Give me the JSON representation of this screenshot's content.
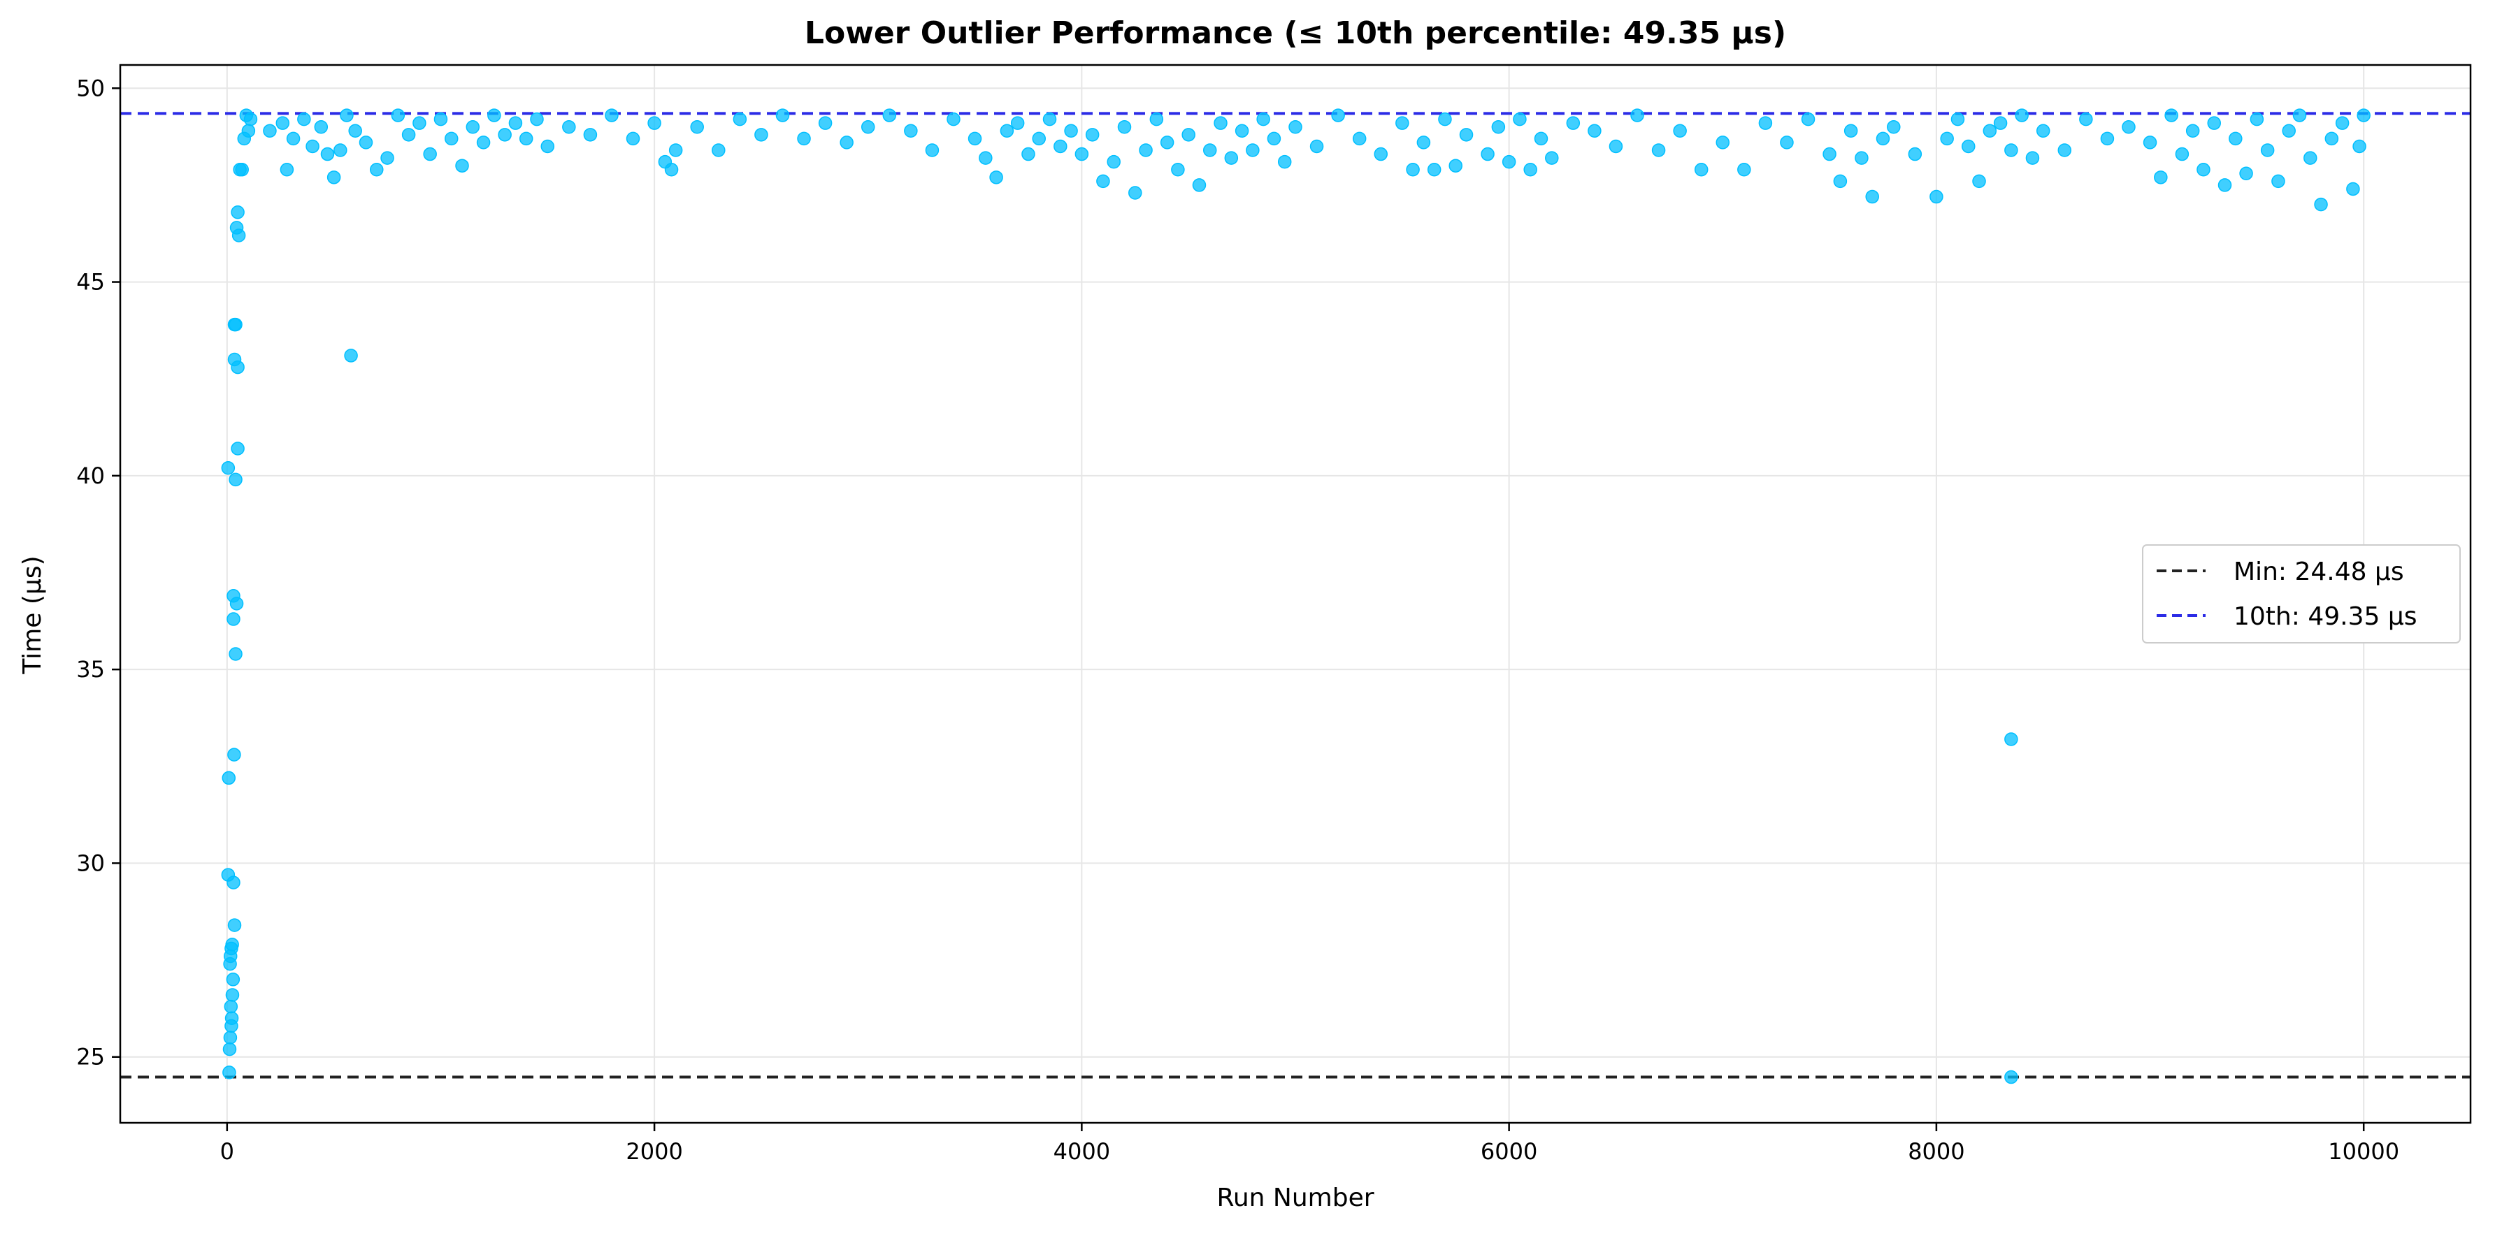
{
  "chart_data": {
    "type": "scatter",
    "title": "Lower Outlier Performance (≤ 10th percentile: 49.35 μs)",
    "xlabel": "Run Number",
    "ylabel": "Time (μs)",
    "xlim": [
      -500,
      10500
    ],
    "ylim": [
      23.3,
      50.6
    ],
    "xticks": [
      0,
      2000,
      4000,
      6000,
      8000,
      10000
    ],
    "yticks": [
      25,
      30,
      35,
      40,
      45,
      50
    ],
    "grid": true,
    "legend_position": "center-right",
    "colors": {
      "points": "#00bfff",
      "min_line": "#222222",
      "p10_line": "#2b2be6",
      "grid": "#e6e6e6"
    },
    "reference_lines": [
      {
        "name": "Min: 24.48 μs",
        "y": 24.48,
        "style": "dashed",
        "color": "#222222"
      },
      {
        "name": "10th: 49.35 μs",
        "y": 49.35,
        "style": "dashed",
        "color": "#2b2be6"
      }
    ],
    "series": [
      {
        "values": [
          [
            10,
            24.6
          ],
          [
            12,
            25.2
          ],
          [
            15,
            25.5
          ],
          [
            20,
            25.8
          ],
          [
            22,
            26.0
          ],
          [
            18,
            26.3
          ],
          [
            25,
            26.6
          ],
          [
            28,
            27.0
          ],
          [
            14,
            27.4
          ],
          [
            16,
            27.6
          ],
          [
            20,
            27.8
          ],
          [
            24,
            27.9
          ],
          [
            35,
            28.4
          ],
          [
            5,
            29.7
          ],
          [
            30,
            29.5
          ],
          [
            8,
            32.2
          ],
          [
            33,
            32.8
          ],
          [
            40,
            35.4
          ],
          [
            30,
            36.3
          ],
          [
            30,
            36.9
          ],
          [
            45,
            36.7
          ],
          [
            40,
            39.9
          ],
          [
            5,
            40.2
          ],
          [
            50,
            40.7
          ],
          [
            35,
            43.0
          ],
          [
            50,
            42.8
          ],
          [
            35,
            43.9
          ],
          [
            40,
            43.9
          ],
          [
            45,
            46.4
          ],
          [
            55,
            46.2
          ],
          [
            50,
            46.8
          ],
          [
            60,
            47.9
          ],
          [
            70,
            47.9
          ],
          [
            80,
            48.7
          ],
          [
            90,
            49.3
          ],
          [
            100,
            48.9
          ],
          [
            110,
            49.2
          ],
          [
            580,
            43.1
          ],
          [
            8350,
            33.2
          ],
          [
            8350,
            24.48
          ],
          [
            200,
            48.9
          ],
          [
            260,
            49.1
          ],
          [
            280,
            47.9
          ],
          [
            310,
            48.7
          ],
          [
            360,
            49.2
          ],
          [
            400,
            48.5
          ],
          [
            440,
            49.0
          ],
          [
            470,
            48.3
          ],
          [
            500,
            47.7
          ],
          [
            530,
            48.4
          ],
          [
            560,
            49.3
          ],
          [
            600,
            48.9
          ],
          [
            650,
            48.6
          ],
          [
            700,
            47.9
          ],
          [
            750,
            48.2
          ],
          [
            800,
            49.3
          ],
          [
            850,
            48.8
          ],
          [
            900,
            49.1
          ],
          [
            950,
            48.3
          ],
          [
            1000,
            49.2
          ],
          [
            1050,
            48.7
          ],
          [
            1100,
            48.0
          ],
          [
            1150,
            49.0
          ],
          [
            1200,
            48.6
          ],
          [
            1250,
            49.3
          ],
          [
            1300,
            48.8
          ],
          [
            1350,
            49.1
          ],
          [
            1400,
            48.7
          ],
          [
            1450,
            49.2
          ],
          [
            1500,
            48.5
          ],
          [
            1600,
            49.0
          ],
          [
            1700,
            48.8
          ],
          [
            1800,
            49.3
          ],
          [
            1900,
            48.7
          ],
          [
            2000,
            49.1
          ],
          [
            2050,
            48.1
          ],
          [
            2080,
            47.9
          ],
          [
            2100,
            48.4
          ],
          [
            2200,
            49.0
          ],
          [
            2300,
            48.4
          ],
          [
            2400,
            49.2
          ],
          [
            2500,
            48.8
          ],
          [
            2600,
            49.3
          ],
          [
            2700,
            48.7
          ],
          [
            2800,
            49.1
          ],
          [
            2900,
            48.6
          ],
          [
            3000,
            49.0
          ],
          [
            3100,
            49.3
          ],
          [
            3200,
            48.9
          ],
          [
            3300,
            48.4
          ],
          [
            3400,
            49.2
          ],
          [
            3500,
            48.7
          ],
          [
            3550,
            48.2
          ],
          [
            3600,
            47.7
          ],
          [
            3650,
            48.9
          ],
          [
            3700,
            49.1
          ],
          [
            3750,
            48.3
          ],
          [
            3800,
            48.7
          ],
          [
            3850,
            49.2
          ],
          [
            3900,
            48.5
          ],
          [
            3950,
            48.9
          ],
          [
            4000,
            48.3
          ],
          [
            4050,
            48.8
          ],
          [
            4100,
            47.6
          ],
          [
            4150,
            48.1
          ],
          [
            4200,
            49.0
          ],
          [
            4250,
            47.3
          ],
          [
            4300,
            48.4
          ],
          [
            4350,
            49.2
          ],
          [
            4400,
            48.6
          ],
          [
            4450,
            47.9
          ],
          [
            4500,
            48.8
          ],
          [
            4550,
            47.5
          ],
          [
            4600,
            48.4
          ],
          [
            4650,
            49.1
          ],
          [
            4700,
            48.2
          ],
          [
            4750,
            48.9
          ],
          [
            4800,
            48.4
          ],
          [
            4850,
            49.2
          ],
          [
            4900,
            48.7
          ],
          [
            4950,
            48.1
          ],
          [
            5000,
            49.0
          ],
          [
            5100,
            48.5
          ],
          [
            5200,
            49.3
          ],
          [
            5300,
            48.7
          ],
          [
            5400,
            48.3
          ],
          [
            5500,
            49.1
          ],
          [
            5550,
            47.9
          ],
          [
            5600,
            48.6
          ],
          [
            5650,
            47.9
          ],
          [
            5700,
            49.2
          ],
          [
            5750,
            48.0
          ],
          [
            5800,
            48.8
          ],
          [
            5900,
            48.3
          ],
          [
            5950,
            49.0
          ],
          [
            6000,
            48.1
          ],
          [
            6050,
            49.2
          ],
          [
            6100,
            47.9
          ],
          [
            6150,
            48.7
          ],
          [
            6200,
            48.2
          ],
          [
            6300,
            49.1
          ],
          [
            6400,
            48.9
          ],
          [
            6500,
            48.5
          ],
          [
            6600,
            49.3
          ],
          [
            6700,
            48.4
          ],
          [
            6800,
            48.9
          ],
          [
            6900,
            47.9
          ],
          [
            7000,
            48.6
          ],
          [
            7100,
            47.9
          ],
          [
            7200,
            49.1
          ],
          [
            7300,
            48.6
          ],
          [
            7400,
            49.2
          ],
          [
            7500,
            48.3
          ],
          [
            7550,
            47.6
          ],
          [
            7600,
            48.9
          ],
          [
            7650,
            48.2
          ],
          [
            7700,
            47.2
          ],
          [
            7750,
            48.7
          ],
          [
            7800,
            49.0
          ],
          [
            7900,
            48.3
          ],
          [
            8000,
            47.2
          ],
          [
            8050,
            48.7
          ],
          [
            8100,
            49.2
          ],
          [
            8150,
            48.5
          ],
          [
            8200,
            47.6
          ],
          [
            8250,
            48.9
          ],
          [
            8300,
            49.1
          ],
          [
            8350,
            48.4
          ],
          [
            8400,
            49.3
          ],
          [
            8450,
            48.2
          ],
          [
            8500,
            48.9
          ],
          [
            8600,
            48.4
          ],
          [
            8700,
            49.2
          ],
          [
            8800,
            48.7
          ],
          [
            8900,
            49.0
          ],
          [
            9000,
            48.6
          ],
          [
            9050,
            47.7
          ],
          [
            9100,
            49.3
          ],
          [
            9150,
            48.3
          ],
          [
            9200,
            48.9
          ],
          [
            9250,
            47.9
          ],
          [
            9300,
            49.1
          ],
          [
            9350,
            47.5
          ],
          [
            9400,
            48.7
          ],
          [
            9450,
            47.8
          ],
          [
            9500,
            49.2
          ],
          [
            9550,
            48.4
          ],
          [
            9600,
            47.6
          ],
          [
            9650,
            48.9
          ],
          [
            9700,
            49.3
          ],
          [
            9750,
            48.2
          ],
          [
            9800,
            47.0
          ],
          [
            9850,
            48.7
          ],
          [
            9900,
            49.1
          ],
          [
            9950,
            47.4
          ],
          [
            9980,
            48.5
          ],
          [
            10000,
            49.3
          ]
        ]
      }
    ]
  }
}
